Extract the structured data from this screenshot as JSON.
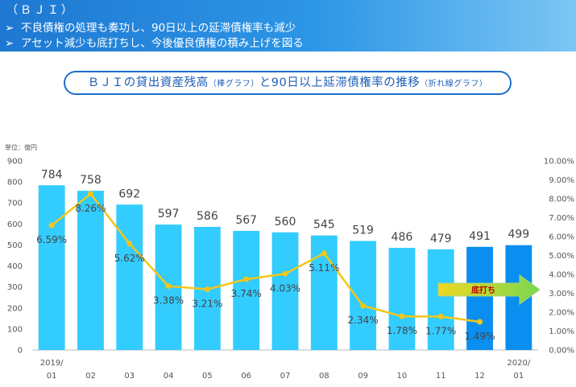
{
  "banner": {
    "title": "（ＢＪＩ）",
    "bullets": [
      "不良債権の処理も奏功し、90日以上の延滞債権率も減少",
      "アセット減少も底打ちし、今後優良債権の積み上げを図る"
    ],
    "bullet_mark": "➢"
  },
  "pill": {
    "part1": "ＢＪＩの貸出資産残高",
    "part2": "（棒グラフ）",
    "part3": "と90日以上延滞債権率の推移",
    "part4": "（折れ線グラフ）"
  },
  "chart_data": {
    "type": "bar+line",
    "unit_label": "単位：億円",
    "categories": [
      "2019/\n01",
      "02",
      "03",
      "04",
      "05",
      "06",
      "07",
      "08",
      "09",
      "10",
      "11",
      "12",
      "2020/\n01"
    ],
    "bars": {
      "values": [
        784,
        758,
        692,
        597,
        586,
        567,
        560,
        545,
        519,
        486,
        479,
        491,
        499
      ],
      "labels": [
        "784",
        "758",
        "692",
        "597",
        "586",
        "567",
        "560",
        "545",
        "519",
        "486",
        "479",
        "491",
        "499"
      ],
      "colors": [
        "#33ccff",
        "#33ccff",
        "#33ccff",
        "#33ccff",
        "#33ccff",
        "#33ccff",
        "#33ccff",
        "#33ccff",
        "#33ccff",
        "#33ccff",
        "#33ccff",
        "#0a8ff0",
        "#0a8ff0"
      ]
    },
    "line": {
      "values": [
        6.59,
        8.26,
        5.62,
        3.38,
        3.21,
        3.74,
        4.03,
        5.11,
        2.34,
        1.78,
        1.77,
        1.49
      ],
      "labels": [
        "6.59%",
        "8.26%",
        "5.62%",
        "3.38%",
        "3.21%",
        "3.74%",
        "4.03%",
        "5.11%",
        "2.34%",
        "1.78%",
        "1.77%",
        "1.49%"
      ],
      "color": "#f5c518"
    },
    "y_left": {
      "min": 0,
      "max": 900,
      "ticks": [
        "0",
        "100",
        "200",
        "300",
        "400",
        "500",
        "600",
        "700",
        "800",
        "900"
      ]
    },
    "y_right": {
      "min": 0,
      "max": 10,
      "ticks": [
        "0.00%",
        "1.00%",
        "2.00%",
        "3.00%",
        "4.00%",
        "5.00%",
        "6.00%",
        "7.00%",
        "8.00%",
        "9.00%",
        "10.00%"
      ]
    },
    "arrow": {
      "label": "底打ち",
      "label_color": "#c00000"
    }
  }
}
